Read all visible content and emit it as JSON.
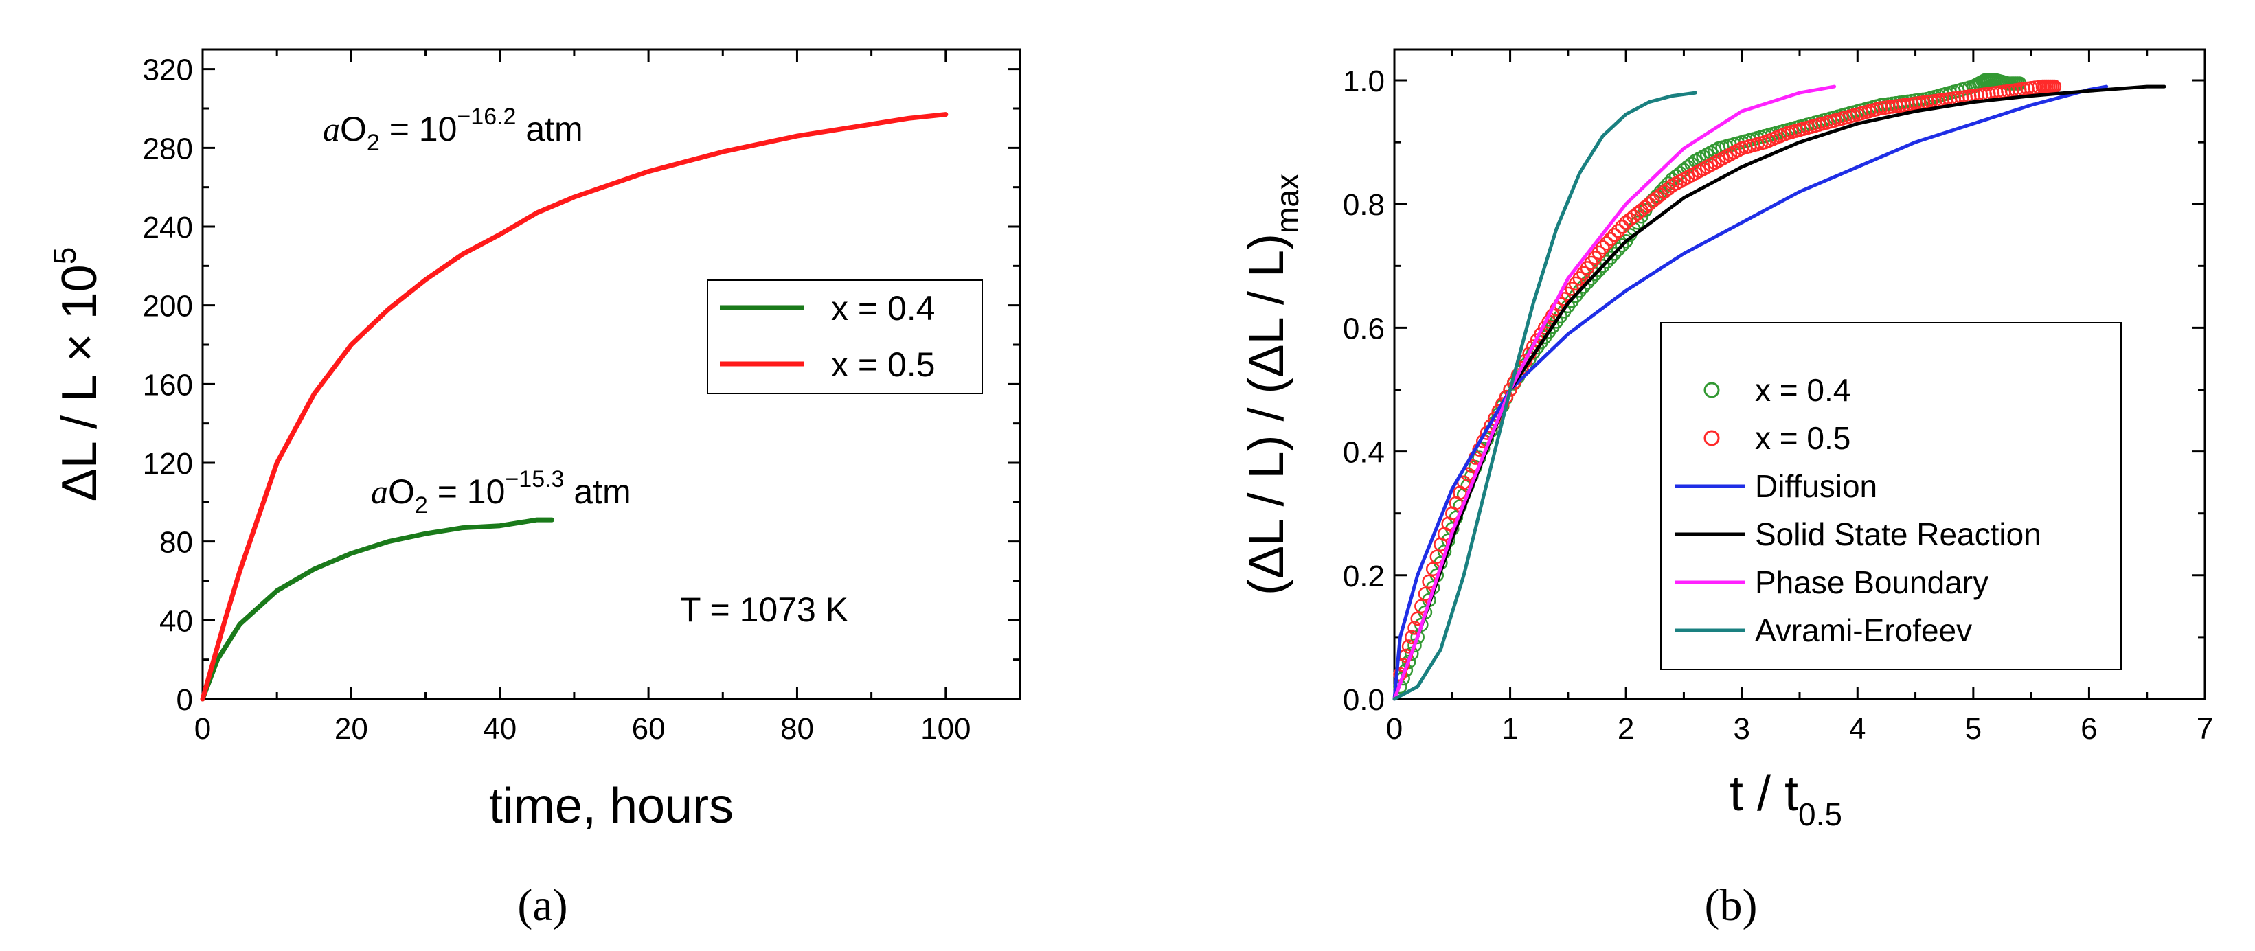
{
  "chart_data": [
    {
      "type": "line",
      "panel_label": "(a)",
      "xlabel": "time, hours",
      "ylabel_main": "ΔL / L × 10",
      "ylabel_sup": "5",
      "xlim": [
        0,
        110
      ],
      "ylim": [
        0,
        330
      ],
      "xticks": [
        0,
        20,
        40,
        60,
        80,
        100
      ],
      "yticks": [
        0,
        40,
        80,
        120,
        160,
        200,
        240,
        280,
        320
      ],
      "legend": [
        "x = 0.4",
        "x = 0.5"
      ],
      "annotations": [
        {
          "pre": "a",
          "main": "O",
          "sub": "2",
          "eq": " = 10",
          "sup": "−16.2",
          "post": " atm"
        },
        {
          "pre": "a",
          "main": "O",
          "sub": "2",
          "eq": " = 10",
          "sup": "−15.3",
          "post": " atm"
        },
        {
          "text": "T = 1073 K"
        }
      ],
      "series": [
        {
          "name": "x = 0.4",
          "color": "#1a7a1a",
          "x": [
            0,
            2,
            5,
            10,
            15,
            20,
            25,
            30,
            35,
            40,
            45,
            47
          ],
          "y": [
            0,
            20,
            38,
            55,
            66,
            74,
            80,
            84,
            87,
            88,
            91,
            91
          ]
        },
        {
          "name": "x = 0.5",
          "color": "#ff1a1a",
          "x": [
            0,
            3,
            5,
            10,
            15,
            20,
            25,
            30,
            35,
            40,
            45,
            50,
            60,
            70,
            80,
            90,
            95,
            100
          ],
          "y": [
            0,
            40,
            65,
            120,
            155,
            180,
            198,
            213,
            226,
            236,
            247,
            255,
            268,
            278,
            286,
            292,
            295,
            297
          ]
        }
      ]
    },
    {
      "type": "line",
      "panel_label": "(b)",
      "xlabel_main": "t / t",
      "xlabel_sub": "0.5",
      "ylabel_main": "(ΔL / L) / (ΔL / L)",
      "ylabel_sub": "max",
      "xlim": [
        0,
        7
      ],
      "ylim": [
        0,
        1.05
      ],
      "xticks": [
        0,
        1,
        2,
        3,
        4,
        5,
        6,
        7
      ],
      "yticks": [
        "0.0",
        "0.2",
        "0.4",
        "0.6",
        "0.8",
        "1.0"
      ],
      "legend": [
        "x = 0.4",
        "x = 0.5",
        "Diffusion",
        "Solid State Reaction",
        "Phase Boundary",
        "Avrami-Erofeev"
      ],
      "series": [
        {
          "name": "x = 0.4",
          "color": "#339933",
          "marker": "open-circle",
          "x": [
            0.05,
            0.2,
            0.4,
            0.6,
            0.8,
            1.0,
            1.2,
            1.4,
            1.6,
            1.8,
            2.0,
            2.2,
            2.4,
            2.6,
            2.8,
            3.0,
            3.2,
            3.4,
            3.6,
            3.8,
            4.0,
            4.2,
            4.4,
            4.6,
            4.8,
            5.0,
            5.1,
            5.2,
            5.3,
            5.4
          ],
          "y": [
            0.02,
            0.1,
            0.22,
            0.33,
            0.42,
            0.5,
            0.56,
            0.61,
            0.66,
            0.7,
            0.74,
            0.8,
            0.84,
            0.87,
            0.89,
            0.9,
            0.91,
            0.92,
            0.93,
            0.94,
            0.95,
            0.96,
            0.965,
            0.97,
            0.98,
            0.99,
            1.0,
            1.0,
            0.995,
            0.995
          ]
        },
        {
          "name": "x = 0.5",
          "color": "#ff2a2a",
          "marker": "open-circle",
          "x": [
            0.05,
            0.2,
            0.4,
            0.6,
            0.8,
            1.0,
            1.2,
            1.4,
            1.6,
            1.8,
            2.0,
            2.2,
            2.4,
            2.6,
            2.8,
            3.0,
            3.2,
            3.4,
            3.6,
            3.8,
            4.0,
            4.2,
            4.4,
            4.6,
            4.8,
            5.0,
            5.2,
            5.4,
            5.6,
            5.7
          ],
          "y": [
            0.04,
            0.13,
            0.25,
            0.35,
            0.43,
            0.5,
            0.57,
            0.63,
            0.68,
            0.73,
            0.77,
            0.8,
            0.83,
            0.85,
            0.87,
            0.89,
            0.9,
            0.915,
            0.925,
            0.935,
            0.945,
            0.955,
            0.96,
            0.965,
            0.97,
            0.975,
            0.98,
            0.985,
            0.99,
            0.99
          ]
        },
        {
          "name": "Diffusion",
          "color": "#1f2ee6",
          "x": [
            0,
            0.05,
            0.2,
            0.5,
            1.0,
            1.5,
            2.0,
            2.5,
            3.0,
            3.5,
            4.0,
            4.5,
            5.0,
            5.5,
            6.0,
            6.15
          ],
          "y": [
            0,
            0.1,
            0.2,
            0.34,
            0.5,
            0.59,
            0.66,
            0.72,
            0.77,
            0.82,
            0.86,
            0.9,
            0.93,
            0.96,
            0.985,
            0.99
          ]
        },
        {
          "name": "Solid State Reaction",
          "color": "#000000",
          "x": [
            0,
            0.2,
            0.5,
            1.0,
            1.5,
            2.0,
            2.5,
            3.0,
            3.5,
            4.0,
            4.5,
            5.0,
            5.5,
            6.0,
            6.5,
            6.65
          ],
          "y": [
            0,
            0.1,
            0.26,
            0.5,
            0.64,
            0.74,
            0.81,
            0.86,
            0.9,
            0.93,
            0.95,
            0.965,
            0.975,
            0.983,
            0.99,
            0.99
          ]
        },
        {
          "name": "Phase Boundary",
          "color": "#ff22ff",
          "x": [
            0,
            0.2,
            0.5,
            1.0,
            1.5,
            2.0,
            2.5,
            3.0,
            3.5,
            3.8
          ],
          "y": [
            0,
            0.1,
            0.27,
            0.5,
            0.68,
            0.8,
            0.89,
            0.95,
            0.98,
            0.99
          ]
        },
        {
          "name": "Avrami-Erofeev",
          "color": "#1a8080",
          "x": [
            0,
            0.2,
            0.4,
            0.6,
            0.8,
            1.0,
            1.2,
            1.4,
            1.6,
            1.8,
            2.0,
            2.2,
            2.4,
            2.6
          ],
          "y": [
            0,
            0.02,
            0.08,
            0.2,
            0.35,
            0.5,
            0.64,
            0.76,
            0.85,
            0.91,
            0.945,
            0.965,
            0.975,
            0.98
          ]
        }
      ]
    }
  ]
}
